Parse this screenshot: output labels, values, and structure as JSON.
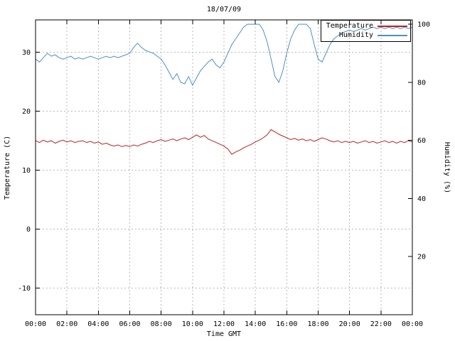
{
  "page": {
    "background": "#ffffff"
  },
  "chart_data": {
    "type": "line",
    "title": "18/07/09",
    "xlabel": "Time GMT",
    "ylabel_left": "Temperature (C)",
    "ylabel_right": "Humidity (%)",
    "x_range": [
      0,
      24
    ],
    "x_ticks": [
      "00:00",
      "02:00",
      "04:00",
      "06:00",
      "08:00",
      "10:00",
      "12:00",
      "14:00",
      "16:00",
      "18:00",
      "20:00",
      "22:00",
      "00:00"
    ],
    "x_tick_hours": [
      0,
      2,
      4,
      6,
      8,
      10,
      12,
      14,
      16,
      18,
      20,
      22,
      24
    ],
    "y_left_ticks": [
      -10,
      0,
      10,
      20,
      30
    ],
    "y_left_range": [
      -14.5,
      35.5
    ],
    "y_right_ticks": [
      20,
      40,
      60,
      80,
      100
    ],
    "y_right_range": [
      0,
      101.5
    ],
    "grid": true,
    "legend_position": "top-right-inside",
    "colors": {
      "grid": "#b8b8b8",
      "axis": "#000000",
      "background": "#ffffff",
      "temperature": "#bb2222",
      "humidity": "#4e8fc8"
    },
    "series": [
      {
        "name": "Temperature",
        "axis": "left",
        "color": "#bb2222",
        "x_start": 0,
        "x_step_hours": 0.25,
        "values": [
          15.0,
          14.7,
          15.1,
          14.8,
          15.0,
          14.6,
          14.9,
          15.1,
          14.8,
          15.0,
          14.7,
          14.9,
          15.0,
          14.7,
          14.9,
          14.6,
          14.8,
          14.4,
          14.6,
          14.3,
          14.1,
          14.3,
          14.0,
          14.2,
          14.0,
          14.3,
          14.1,
          14.4,
          14.6,
          14.9,
          14.7,
          15.0,
          15.2,
          14.9,
          15.1,
          15.3,
          15.0,
          15.3,
          15.5,
          15.2,
          15.6,
          16.0,
          15.6,
          15.9,
          15.3,
          15.0,
          14.7,
          14.4,
          14.1,
          13.6,
          12.7,
          13.1,
          13.4,
          13.8,
          14.1,
          14.4,
          14.8,
          15.1,
          15.5,
          16.0,
          16.9,
          16.5,
          16.1,
          15.8,
          15.5,
          15.2,
          15.4,
          15.1,
          15.3,
          15.0,
          15.2,
          14.9,
          15.2,
          15.5,
          15.3,
          15.0,
          14.8,
          15.0,
          14.7,
          14.9,
          14.7,
          14.9,
          14.6,
          14.8,
          15.0,
          14.7,
          14.9,
          14.6,
          14.8,
          15.0,
          14.7,
          14.9,
          14.6,
          14.9,
          14.7,
          15.0,
          14.8
        ]
      },
      {
        "name": "Humidity",
        "axis": "right",
        "color": "#4e8fc8",
        "x_start": 0,
        "x_step_hours": 0.25,
        "values": [
          88.0,
          87.0,
          88.5,
          90.0,
          89.0,
          89.5,
          88.5,
          88.0,
          88.5,
          89.0,
          88.0,
          88.5,
          88.0,
          88.5,
          89.0,
          88.5,
          88.0,
          88.5,
          89.0,
          88.5,
          89.0,
          88.5,
          89.0,
          89.5,
          90.0,
          92.0,
          93.5,
          92.0,
          91.0,
          90.5,
          90.0,
          89.0,
          88.0,
          86.0,
          83.5,
          81.0,
          83.0,
          80.0,
          79.5,
          82.0,
          79.0,
          81.5,
          84.0,
          85.5,
          87.0,
          88.0,
          86.0,
          85.0,
          87.0,
          90.0,
          93.0,
          95.0,
          97.0,
          99.0,
          100.0,
          100.0,
          100.0,
          100.0,
          98.0,
          94.0,
          88.0,
          82.0,
          80.0,
          84.0,
          90.0,
          95.0,
          98.0,
          100.0,
          100.0,
          100.0,
          98.5,
          93.0,
          88.0,
          87.0,
          90.0,
          93.0,
          95.0,
          96.0,
          97.0,
          97.5,
          98.0,
          97.5,
          98.0,
          98.5,
          98.0,
          98.5,
          99.0,
          98.5,
          99.0,
          98.5,
          99.0,
          98.5,
          99.0,
          98.5,
          99.0,
          98.5,
          99.0
        ]
      }
    ]
  }
}
